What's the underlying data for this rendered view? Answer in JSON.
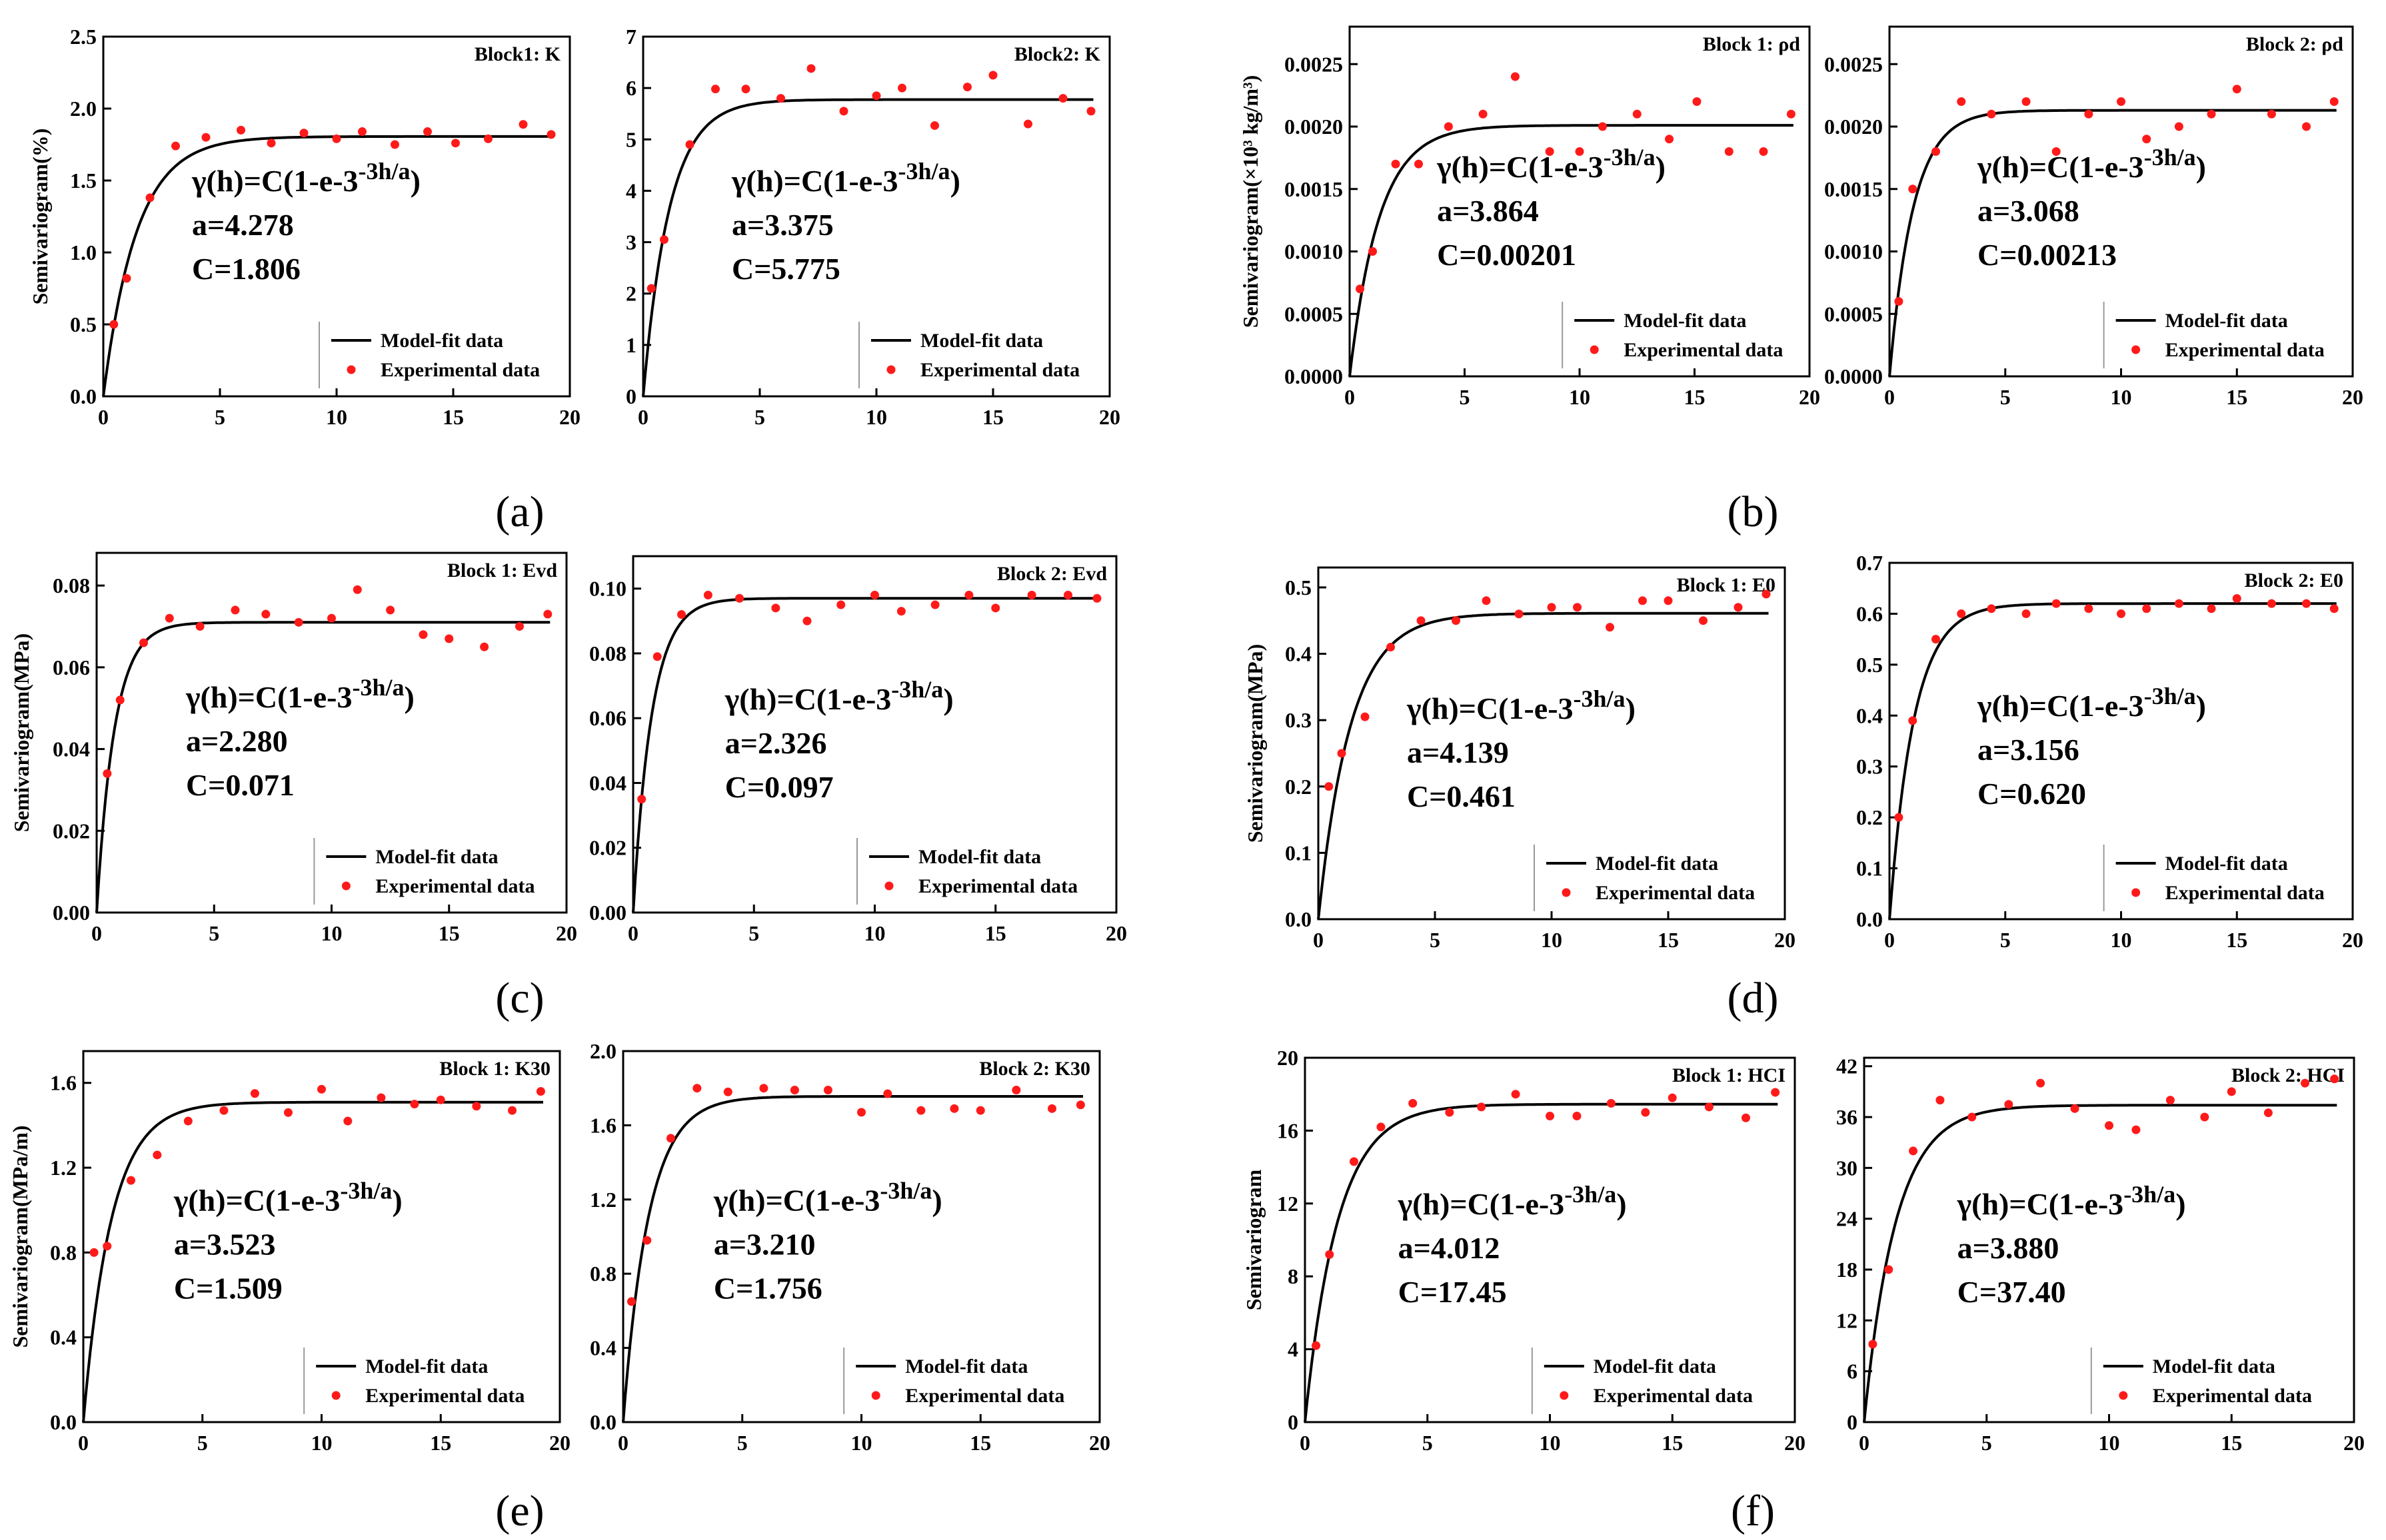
{
  "figure": {
    "panel_captions": [
      "(a)",
      "(b)",
      "(c)",
      "(d)",
      "(e)",
      "(f)"
    ],
    "legend_model": "Model-fit data",
    "legend_experimental": "Experimental data",
    "model_label": "γ(h)=C(1-e-3h/a)"
  },
  "colors": {
    "model_line": "#000000",
    "experimental_point": "#ff1a1a",
    "axis": "#000000"
  },
  "chart_data": [
    {
      "type": "scatter",
      "panel": "a",
      "title": "Block1: K",
      "ylabel": "Semivariogram(%)",
      "xlabel": "",
      "xlim": [
        0,
        20
      ],
      "xticks": [
        0,
        5,
        10,
        15,
        20
      ],
      "ylim": [
        0,
        2.5
      ],
      "yticks": [
        "0.0",
        "0.5",
        "1.0",
        "1.5",
        "2.0",
        "2.5"
      ],
      "model": {
        "a": "4.278",
        "C": "1.806",
        "a_value": 4.278,
        "C_value": 1.806
      },
      "series": [
        {
          "name": "Experimental data",
          "x": [
            0.45,
            1.0,
            2.0,
            3.1,
            4.4,
            5.9,
            7.2,
            8.6,
            10.0,
            11.1,
            12.5,
            13.9,
            15.1,
            16.5,
            18.0,
            19.2
          ],
          "y": [
            0.5,
            0.82,
            1.38,
            1.74,
            1.8,
            1.85,
            1.76,
            1.83,
            1.79,
            1.84,
            1.75,
            1.84,
            1.76,
            1.79,
            1.89,
            1.82
          ]
        }
      ]
    },
    {
      "type": "scatter",
      "panel": "a",
      "title": "Block2: K",
      "ylabel": "",
      "xlabel": "",
      "xlim": [
        0,
        20
      ],
      "xticks": [
        0,
        5,
        10,
        15,
        20
      ],
      "ylim": [
        0,
        7
      ],
      "yticks": [
        "0",
        "1",
        "2",
        "3",
        "4",
        "5",
        "6",
        "7"
      ],
      "model": {
        "a": "3.375",
        "C": "5.775",
        "a_value": 3.375,
        "C_value": 5.775
      },
      "series": [
        {
          "name": "Experimental data",
          "x": [
            0.35,
            0.9,
            2.0,
            3.1,
            4.4,
            5.9,
            7.2,
            8.6,
            10.0,
            11.1,
            12.5,
            13.9,
            15.0,
            16.5,
            18.0,
            19.2
          ],
          "y": [
            2.1,
            3.05,
            4.9,
            5.98,
            5.98,
            5.8,
            6.38,
            5.55,
            5.85,
            6.0,
            5.27,
            6.02,
            6.25,
            5.3,
            5.8,
            5.55
          ]
        }
      ]
    },
    {
      "type": "scatter",
      "panel": "b",
      "title": "Block 1: ρd",
      "ylabel": "Semivariogram(×10³ kg/m³)",
      "xlabel": "",
      "xlim": [
        0,
        20
      ],
      "xticks": [
        0,
        5,
        10,
        15,
        20
      ],
      "ylim": [
        0,
        0.0028
      ],
      "yticks": [
        "0.0000",
        "0.0005",
        "0.0010",
        "0.0015",
        "0.0020",
        "0.0025"
      ],
      "model": {
        "a": "3.864",
        "C": "0.00201",
        "a_value": 3.864,
        "C_value": 0.00201
      },
      "series": [
        {
          "name": "Experimental data",
          "x": [
            0.45,
            1.0,
            2.0,
            3.0,
            4.3,
            5.8,
            7.2,
            8.7,
            10.0,
            11.0,
            12.5,
            13.9,
            15.1,
            16.5,
            18.0,
            19.2
          ],
          "y": [
            0.0007,
            0.001,
            0.0017,
            0.0017,
            0.002,
            0.0021,
            0.0024,
            0.0018,
            0.0018,
            0.002,
            0.0021,
            0.0019,
            0.0022,
            0.0018,
            0.0018,
            0.0021
          ]
        }
      ]
    },
    {
      "type": "scatter",
      "panel": "b",
      "title": "Block 2: ρd",
      "ylabel": "",
      "xlabel": "",
      "xlim": [
        0,
        20
      ],
      "xticks": [
        0,
        5,
        10,
        15,
        20
      ],
      "ylim": [
        0,
        0.0028
      ],
      "yticks": [
        "0.0000",
        "0.0005",
        "0.0010",
        "0.0015",
        "0.0020",
        "0.0025"
      ],
      "model": {
        "a": "3.068",
        "C": "0.00213",
        "a_value": 3.068,
        "C_value": 0.00213
      },
      "series": [
        {
          "name": "Experimental data",
          "x": [
            0.4,
            1.0,
            2.0,
            3.1,
            4.4,
            5.9,
            7.2,
            8.6,
            10.0,
            11.1,
            12.5,
            13.9,
            15.0,
            16.5,
            18.0,
            19.2
          ],
          "y": [
            0.0006,
            0.0015,
            0.0018,
            0.0022,
            0.0021,
            0.0022,
            0.0018,
            0.0021,
            0.0022,
            0.0019,
            0.002,
            0.0021,
            0.0023,
            0.0021,
            0.002,
            0.0022
          ]
        }
      ]
    },
    {
      "type": "scatter",
      "panel": "c",
      "title": "Block 1: Evd",
      "ylabel": "Semivariogram(MPa)",
      "xlabel": "",
      "xlim": [
        0,
        20
      ],
      "xticks": [
        0,
        5,
        10,
        15,
        20
      ],
      "ylim": [
        0,
        0.088
      ],
      "yticks": [
        "0.00",
        "0.02",
        "0.04",
        "0.06",
        "0.08"
      ],
      "model": {
        "a": "2.280",
        "C": "0.071",
        "a_value": 2.28,
        "C_value": 0.071
      },
      "series": [
        {
          "name": "Experimental data",
          "x": [
            0.45,
            1.0,
            2.0,
            3.1,
            4.4,
            5.9,
            7.2,
            8.6,
            10.0,
            11.1,
            12.5,
            13.9,
            15.0,
            16.5,
            18.0,
            19.2
          ],
          "y": [
            0.034,
            0.052,
            0.066,
            0.072,
            0.07,
            0.074,
            0.073,
            0.071,
            0.072,
            0.079,
            0.074,
            0.068,
            0.067,
            0.065,
            0.07,
            0.073
          ]
        }
      ]
    },
    {
      "type": "scatter",
      "panel": "c",
      "title": "Block 2: Evd",
      "ylabel": "",
      "xlabel": "",
      "xlim": [
        0,
        20
      ],
      "xticks": [
        0,
        5,
        10,
        15,
        20
      ],
      "ylim": [
        0,
        0.11
      ],
      "yticks": [
        "0.00",
        "0.02",
        "0.04",
        "0.06",
        "0.08",
        "0.10"
      ],
      "model": {
        "a": "2.326",
        "C": "0.097",
        "a_value": 2.326,
        "C_value": 0.097
      },
      "series": [
        {
          "name": "Experimental data",
          "x": [
            0.35,
            1.0,
            2.0,
            3.1,
            4.4,
            5.9,
            7.2,
            8.6,
            10.0,
            11.1,
            12.5,
            13.9,
            15.0,
            16.5,
            18.0,
            19.2
          ],
          "y": [
            0.035,
            0.079,
            0.092,
            0.098,
            0.097,
            0.094,
            0.09,
            0.095,
            0.098,
            0.093,
            0.095,
            0.098,
            0.094,
            0.098,
            0.098,
            0.097
          ]
        }
      ]
    },
    {
      "type": "scatter",
      "panel": "d",
      "title": "Block 1: E0",
      "ylabel": "Semivariogram(MPa)",
      "xlabel": "",
      "xlim": [
        0,
        20
      ],
      "xticks": [
        0,
        5,
        10,
        15,
        20
      ],
      "ylim": [
        0,
        0.53
      ],
      "yticks": [
        "0.0",
        "0.1",
        "0.2",
        "0.3",
        "0.4",
        "0.5"
      ],
      "model": {
        "a": "4.139",
        "C": "0.461",
        "a_value": 4.139,
        "C_value": 0.461
      },
      "series": [
        {
          "name": "Experimental data",
          "x": [
            0.45,
            1.0,
            2.0,
            3.1,
            4.4,
            5.9,
            7.2,
            8.6,
            10.0,
            11.1,
            12.5,
            13.9,
            15.0,
            16.5,
            18.0,
            19.2
          ],
          "y": [
            0.2,
            0.25,
            0.305,
            0.41,
            0.45,
            0.45,
            0.48,
            0.46,
            0.47,
            0.47,
            0.44,
            0.48,
            0.48,
            0.45,
            0.47,
            0.49
          ]
        }
      ]
    },
    {
      "type": "scatter",
      "panel": "d",
      "title": "Block 2: E0",
      "ylabel": "",
      "xlabel": "",
      "xlim": [
        0,
        20
      ],
      "xticks": [
        0,
        5,
        10,
        15,
        20
      ],
      "ylim": [
        0,
        0.7
      ],
      "yticks": [
        "0.0",
        "0.1",
        "0.2",
        "0.3",
        "0.4",
        "0.5",
        "0.6",
        "0.7"
      ],
      "model": {
        "a": "3.156",
        "C": "0.620",
        "a_value": 3.156,
        "C_value": 0.62
      },
      "series": [
        {
          "name": "Experimental data",
          "x": [
            0.4,
            1.0,
            2.0,
            3.1,
            4.4,
            5.9,
            7.2,
            8.6,
            10.0,
            11.1,
            12.5,
            13.9,
            15.0,
            16.5,
            18.0,
            19.2
          ],
          "y": [
            0.2,
            0.39,
            0.55,
            0.6,
            0.61,
            0.6,
            0.62,
            0.61,
            0.6,
            0.61,
            0.62,
            0.61,
            0.63,
            0.62,
            0.62,
            0.61
          ]
        }
      ]
    },
    {
      "type": "scatter",
      "panel": "e",
      "title": "Block 1: K30",
      "ylabel": "Semivariogram(MPa/m)",
      "xlabel": "",
      "xlim": [
        0,
        20
      ],
      "xticks": [
        0,
        5,
        10,
        15,
        20
      ],
      "ylim": [
        0,
        1.75
      ],
      "yticks": [
        "0.0",
        "0.4",
        "0.8",
        "1.2",
        "1.6"
      ],
      "model": {
        "a": "3.523",
        "C": "1.509",
        "a_value": 3.523,
        "C_value": 1.509
      },
      "series": [
        {
          "name": "Experimental data",
          "x": [
            0.45,
            1.0,
            2.0,
            3.1,
            4.4,
            5.9,
            7.2,
            8.6,
            10.0,
            11.1,
            12.5,
            13.9,
            15.0,
            16.5,
            18.0,
            19.2
          ],
          "y": [
            0.8,
            0.83,
            1.14,
            1.26,
            1.42,
            1.47,
            1.55,
            1.46,
            1.57,
            1.42,
            1.53,
            1.5,
            1.52,
            1.49,
            1.47,
            1.56
          ]
        }
      ]
    },
    {
      "type": "scatter",
      "panel": "e",
      "title": "Block 2: K30",
      "ylabel": "",
      "xlabel": "",
      "xlim": [
        0,
        20
      ],
      "xticks": [
        0,
        5,
        10,
        15,
        20
      ],
      "ylim": [
        0,
        2.0
      ],
      "yticks": [
        "0.0",
        "0.4",
        "0.8",
        "1.2",
        "1.6",
        "2.0"
      ],
      "model": {
        "a": "3.210",
        "C": "1.756",
        "a_value": 3.21,
        "C_value": 1.756
      },
      "series": [
        {
          "name": "Experimental data",
          "x": [
            0.35,
            1.0,
            2.0,
            3.1,
            4.4,
            5.9,
            7.2,
            8.6,
            10.0,
            11.1,
            12.5,
            13.9,
            15.0,
            16.5,
            18.0,
            19.2
          ],
          "y": [
            0.65,
            0.98,
            1.53,
            1.8,
            1.78,
            1.8,
            1.79,
            1.79,
            1.67,
            1.77,
            1.68,
            1.69,
            1.68,
            1.79,
            1.69,
            1.71
          ]
        }
      ]
    },
    {
      "type": "scatter",
      "panel": "f",
      "title": "Block 1: HCI",
      "ylabel": "Semivariogram",
      "xlabel": "",
      "xlim": [
        0,
        20
      ],
      "xticks": [
        0,
        5,
        10,
        15,
        20
      ],
      "ylim": [
        0,
        20
      ],
      "yticks": [
        "0",
        "4",
        "8",
        "12",
        "16",
        "20"
      ],
      "model": {
        "a": "4.012",
        "C": "17.45",
        "a_value": 4.012,
        "C_value": 17.45
      },
      "series": [
        {
          "name": "Experimental data",
          "x": [
            0.45,
            1.0,
            2.0,
            3.1,
            4.4,
            5.9,
            7.2,
            8.6,
            10.0,
            11.1,
            12.5,
            13.9,
            15.0,
            16.5,
            18.0,
            19.2
          ],
          "y": [
            4.2,
            9.2,
            14.3,
            16.2,
            17.5,
            17.0,
            17.3,
            18.0,
            16.8,
            16.8,
            17.5,
            17.0,
            17.8,
            17.3,
            16.7,
            18.1
          ]
        }
      ]
    },
    {
      "type": "scatter",
      "panel": "f",
      "title": "Block 2: HCI",
      "ylabel": "",
      "xlabel": "",
      "xlim": [
        0,
        20
      ],
      "xticks": [
        0,
        5,
        10,
        15,
        20
      ],
      "ylim": [
        0,
        43
      ],
      "yticks": [
        "0",
        "6",
        "12",
        "18",
        "24",
        "30",
        "36",
        "42"
      ],
      "model": {
        "a": "3.880",
        "C": "37.40",
        "a_value": 3.88,
        "C_value": 37.4
      },
      "series": [
        {
          "name": "Experimental data",
          "x": [
            0.35,
            1.0,
            2.0,
            3.1,
            4.4,
            5.9,
            7.2,
            8.6,
            10.0,
            11.1,
            12.5,
            13.9,
            15.0,
            16.5,
            18.0,
            19.2
          ],
          "y": [
            9.2,
            18.0,
            32.0,
            38.0,
            36.0,
            37.5,
            40.0,
            37.0,
            35.0,
            34.5,
            38.0,
            36.0,
            39.0,
            36.5,
            40.0,
            40.5
          ]
        }
      ]
    }
  ]
}
